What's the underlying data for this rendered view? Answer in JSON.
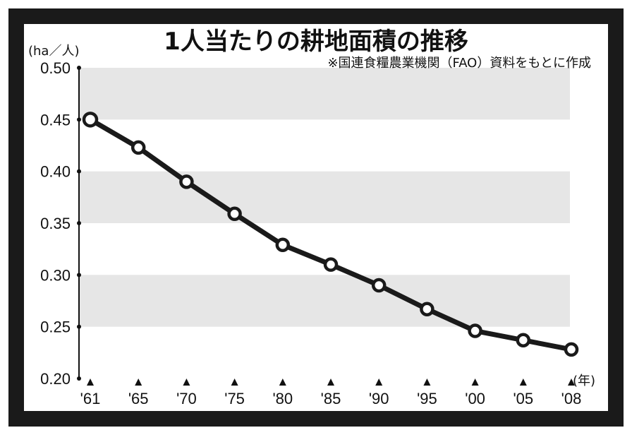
{
  "chart_data": {
    "type": "line",
    "title": "1人当たりの耕地面積の推移",
    "subtitle": "※国連食糧農業機関（FAO）資料をもとに作成",
    "ylabel": "(ha／人)",
    "xlabel": "(年)",
    "categories": [
      "'61",
      "'65",
      "'70",
      "'75",
      "'80",
      "'85",
      "'90",
      "'95",
      "'00",
      "'05",
      "'08"
    ],
    "y_ticks": [
      "0.20",
      "0.25",
      "0.30",
      "0.35",
      "0.40",
      "0.45",
      "0.50"
    ],
    "ylim": [
      0.2,
      0.5
    ],
    "series": [
      {
        "values": [
          0.45,
          0.423,
          0.39,
          0.359,
          0.329,
          0.31,
          0.29,
          0.267,
          0.246,
          0.237,
          0.228
        ]
      }
    ],
    "grid": "alternating horizontal bands",
    "colors": {
      "line": "#1a1a1a",
      "band": "#e6e6e6",
      "frame": "#1a1a1a"
    }
  }
}
